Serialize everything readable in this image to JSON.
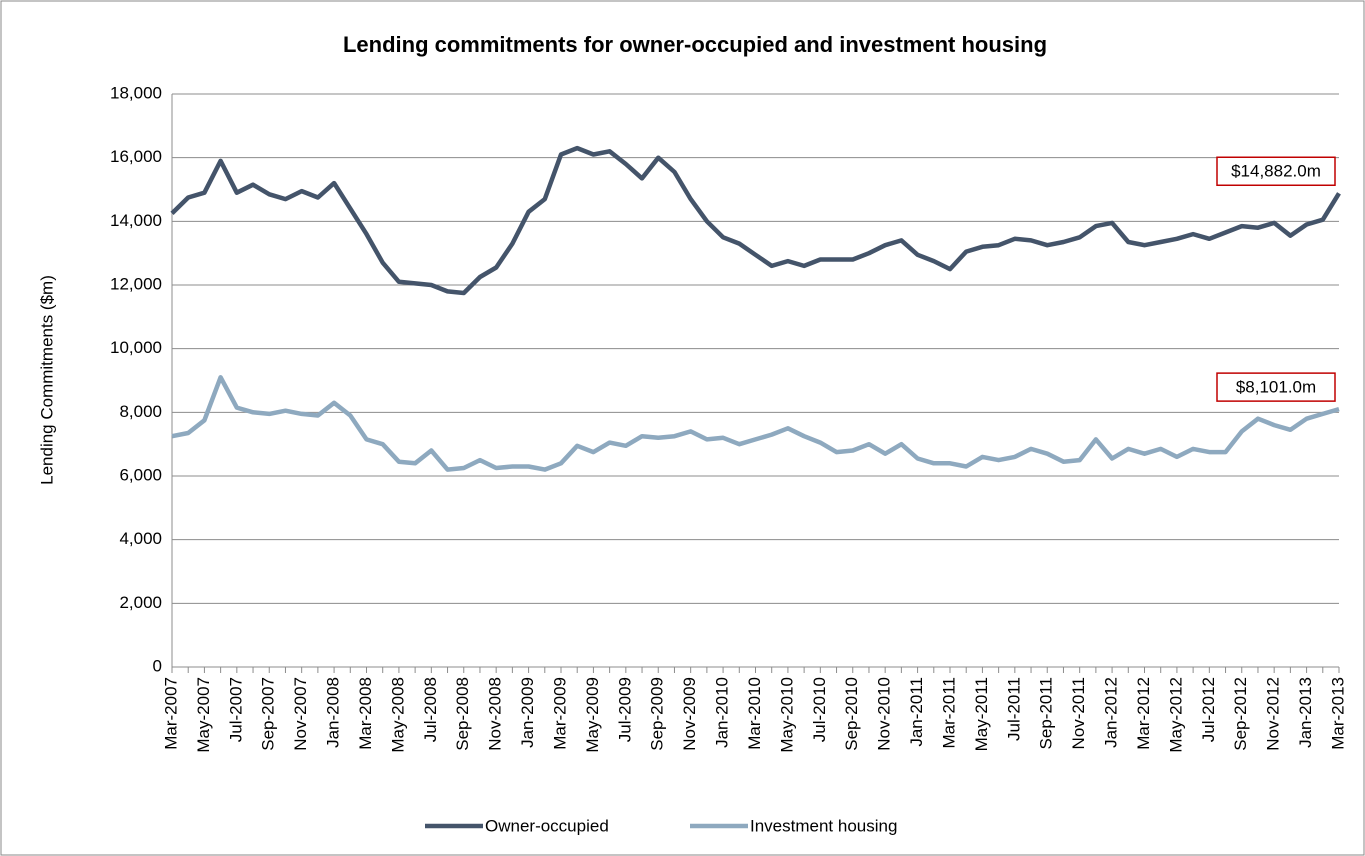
{
  "chart_data": {
    "type": "line",
    "title": "Lending commitments for owner-occupied and investment housing",
    "y_label": "Lending Commitments ($m)",
    "categories": [
      "Mar-2007",
      null,
      "May-2007",
      null,
      "Jul-2007",
      null,
      "Sep-2007",
      null,
      "Nov-2007",
      null,
      "Jan-2008",
      null,
      "Mar-2008",
      null,
      "May-2008",
      null,
      "Jul-2008",
      null,
      "Sep-2008",
      null,
      "Nov-2008",
      null,
      "Jan-2009",
      null,
      "Mar-2009",
      null,
      "May-2009",
      null,
      "Jul-2009",
      null,
      "Sep-2009",
      null,
      "Nov-2009",
      null,
      "Jan-2010",
      null,
      "Mar-2010",
      null,
      "May-2010",
      null,
      "Jul-2010",
      null,
      "Sep-2010",
      null,
      "Nov-2010",
      null,
      "Jan-2011",
      null,
      "Mar-2011",
      null,
      "May-2011",
      null,
      "Jul-2011",
      null,
      "Sep-2011",
      null,
      "Nov-2011",
      null,
      "Jan-2012",
      null,
      "Mar-2012",
      null,
      "May-2012",
      null,
      "Jul-2012",
      null,
      "Sep-2012",
      null,
      "Nov-2012",
      null,
      "Jan-2013",
      null,
      "Mar-2013"
    ],
    "series": [
      {
        "name": "Owner-occupied",
        "color": "#44546a",
        "end_label": "$14,882.0m",
        "values": [
          14250,
          14750,
          14900,
          15900,
          14900,
          15150,
          14850,
          14700,
          14950,
          14750,
          15200,
          14400,
          13600,
          12700,
          12100,
          12050,
          12000,
          11800,
          11750,
          12250,
          12550,
          13300,
          14300,
          14700,
          16100,
          16300,
          16100,
          16200,
          15800,
          15350,
          16000,
          15550,
          14700,
          14000,
          13500,
          13300,
          12950,
          12600,
          12750,
          12600,
          12800,
          12800,
          12800,
          13000,
          13250,
          13400,
          12950,
          12750,
          12500,
          13050,
          13200,
          13250,
          13450,
          13400,
          13250,
          13350,
          13500,
          13850,
          13950,
          13350,
          13250,
          13350,
          13450,
          13600,
          13450,
          13650,
          13850,
          13800,
          13950,
          13550,
          13900,
          14050,
          14882
        ]
      },
      {
        "name": "Investment housing",
        "color": "#8ea9bf",
        "end_label": "$8,101.0m",
        "values": [
          7250,
          7350,
          7750,
          9100,
          8150,
          8000,
          7950,
          8050,
          7950,
          7900,
          8300,
          7900,
          7150,
          7000,
          6450,
          6400,
          6800,
          6200,
          6250,
          6500,
          6250,
          6300,
          6300,
          6200,
          6400,
          6950,
          6750,
          7050,
          6950,
          7250,
          7200,
          7250,
          7400,
          7150,
          7200,
          7000,
          7150,
          7300,
          7500,
          7250,
          7050,
          6750,
          6800,
          7000,
          6700,
          7000,
          6550,
          6400,
          6400,
          6300,
          6600,
          6500,
          6600,
          6850,
          6700,
          6450,
          6500,
          7150,
          6550,
          6850,
          6700,
          6850,
          6600,
          6850,
          6750,
          6750,
          7400,
          7800,
          7600,
          7450,
          7800,
          7950,
          8101
        ]
      }
    ],
    "ylim": [
      0,
      18000
    ],
    "yticks": [
      0,
      {
        "value": 2000,
        "label": "2,000"
      },
      {
        "value": 4000,
        "label": "4,000"
      },
      {
        "value": 6000,
        "label": "6,000"
      },
      {
        "value": 8000,
        "label": "8,000"
      },
      {
        "value": 10000,
        "label": "10,000"
      },
      {
        "value": 12000,
        "label": "12,000"
      },
      {
        "value": 14000,
        "label": "14,000"
      },
      {
        "value": 16000,
        "label": "16,000"
      },
      {
        "value": 18000,
        "label": "18,000"
      }
    ],
    "grid": true,
    "legend": "bottom"
  }
}
